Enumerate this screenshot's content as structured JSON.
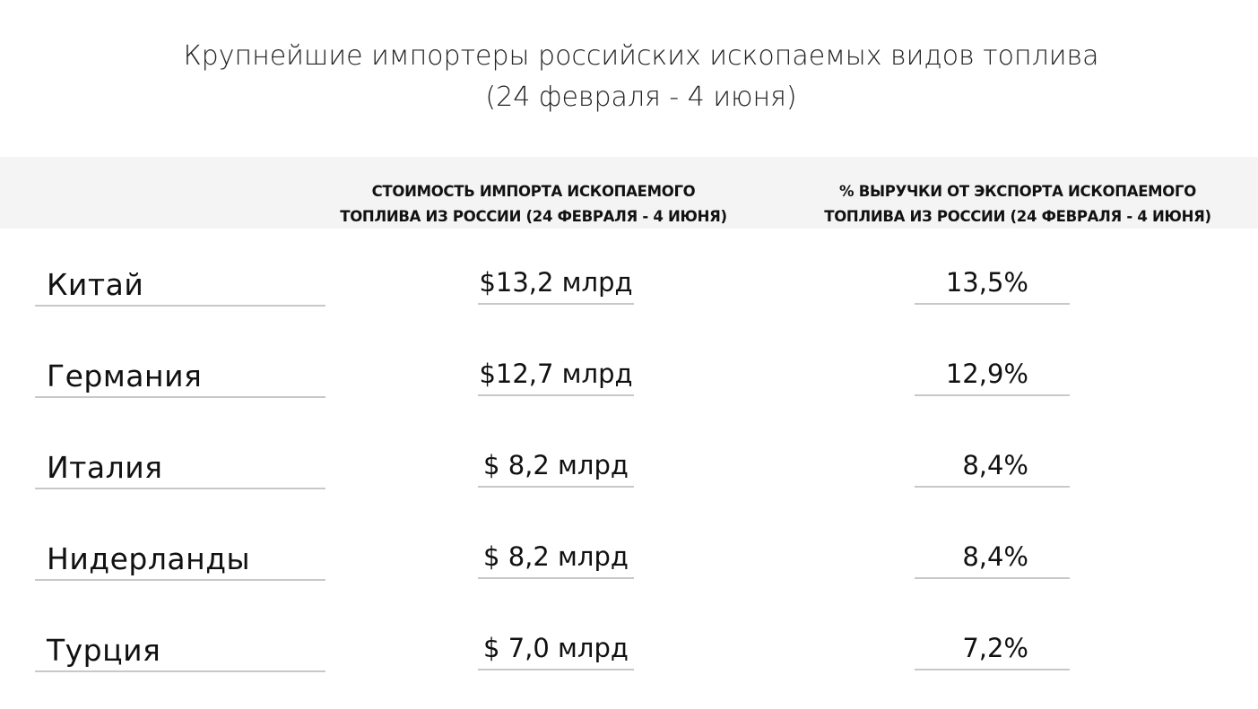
{
  "chart_data": {
    "type": "table",
    "title_line1": "Крупнейшие импортеры российских ископаемых видов топлива",
    "title_line2": "(24 февраля - 4 июня)",
    "columns": [
      "",
      "СТОИМОСТЬ ИМПОРТА ИСКОПАЕМОГО ТОПЛИВА ИЗ РОССИИ (24 ФЕВРАЛЯ - 4 ИЮНЯ)",
      "% ВЫРУЧКИ ОТ ЭКСПОРТА ИСКОПАЕМОГО ТОПЛИВА ИЗ РОССИИ (24 ФЕВРАЛЯ - 4 ИЮНЯ)"
    ],
    "header_col1_line1": "СТОИМОСТЬ ИМПОРТА ИСКОПАЕМОГО",
    "header_col1_line2": "ТОПЛИВА ИЗ РОССИИ (24 ФЕВРАЛЯ - 4 ИЮНЯ)",
    "header_col2_line1": "% ВЫРУЧКИ ОТ ЭКСПОРТА ИСКОПАЕМОГО",
    "header_col2_line2": "ТОПЛИВА ИЗ РОССИИ (24 ФЕВРАЛЯ - 4 ИЮНЯ)",
    "rows": [
      {
        "country": "Китай",
        "value": "$13,2 млрд",
        "share": "13,5%"
      },
      {
        "country": "Германия",
        "value": "$12,7 млрд",
        "share": "12,9%"
      },
      {
        "country": "Италия",
        "value": "$ 8,2 млрд",
        "share": "8,4%"
      },
      {
        "country": "Нидерланды",
        "value": "$ 8,2 млрд",
        "share": "8,4%"
      },
      {
        "country": "Турция",
        "value": "$ 7,0 млрд",
        "share": "7,2%"
      }
    ],
    "colors": {
      "header_band": "#f4f4f4",
      "divider": "#c8c8c8",
      "text": "#111111"
    }
  }
}
